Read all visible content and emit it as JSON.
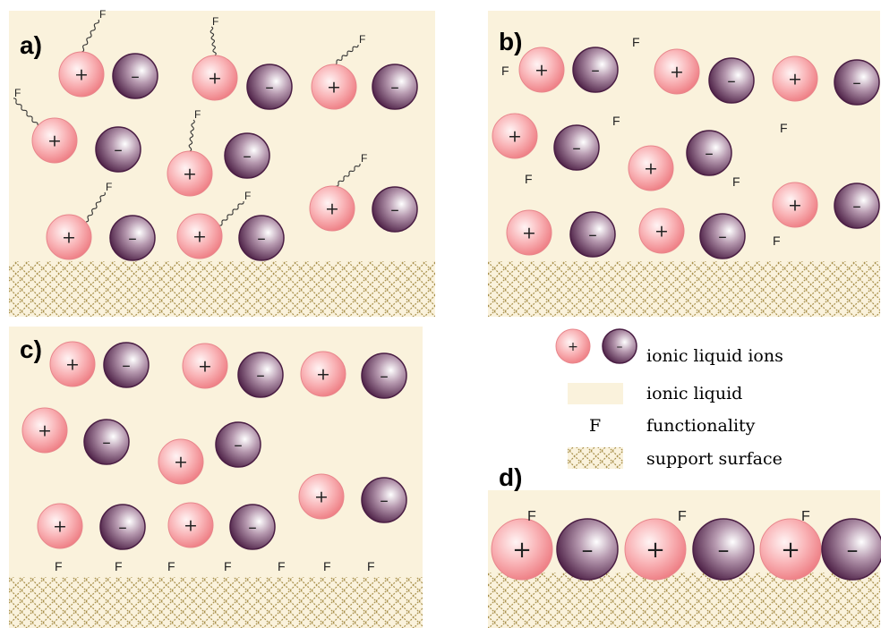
{
  "panels": {
    "a": {
      "label": "a)"
    },
    "b": {
      "label": "b)"
    },
    "c": {
      "label": "c)"
    },
    "d": {
      "label": "d)"
    }
  },
  "symbols": {
    "cation": "+",
    "anion": "–",
    "functionality": "F"
  },
  "legend": {
    "ions": "ionic liquid ions",
    "liquid": "ionic liquid",
    "functionality_symbol": "F",
    "functionality": "functionality",
    "surface": "support surface"
  },
  "colors": {
    "liquid": "#faf2dc",
    "cation_center": "#fff2f2",
    "cation_edge": "#f07f85",
    "anion_center": "#ffffff",
    "anion_edge": "#4c1f45",
    "surface_line": "#a8904c"
  }
}
